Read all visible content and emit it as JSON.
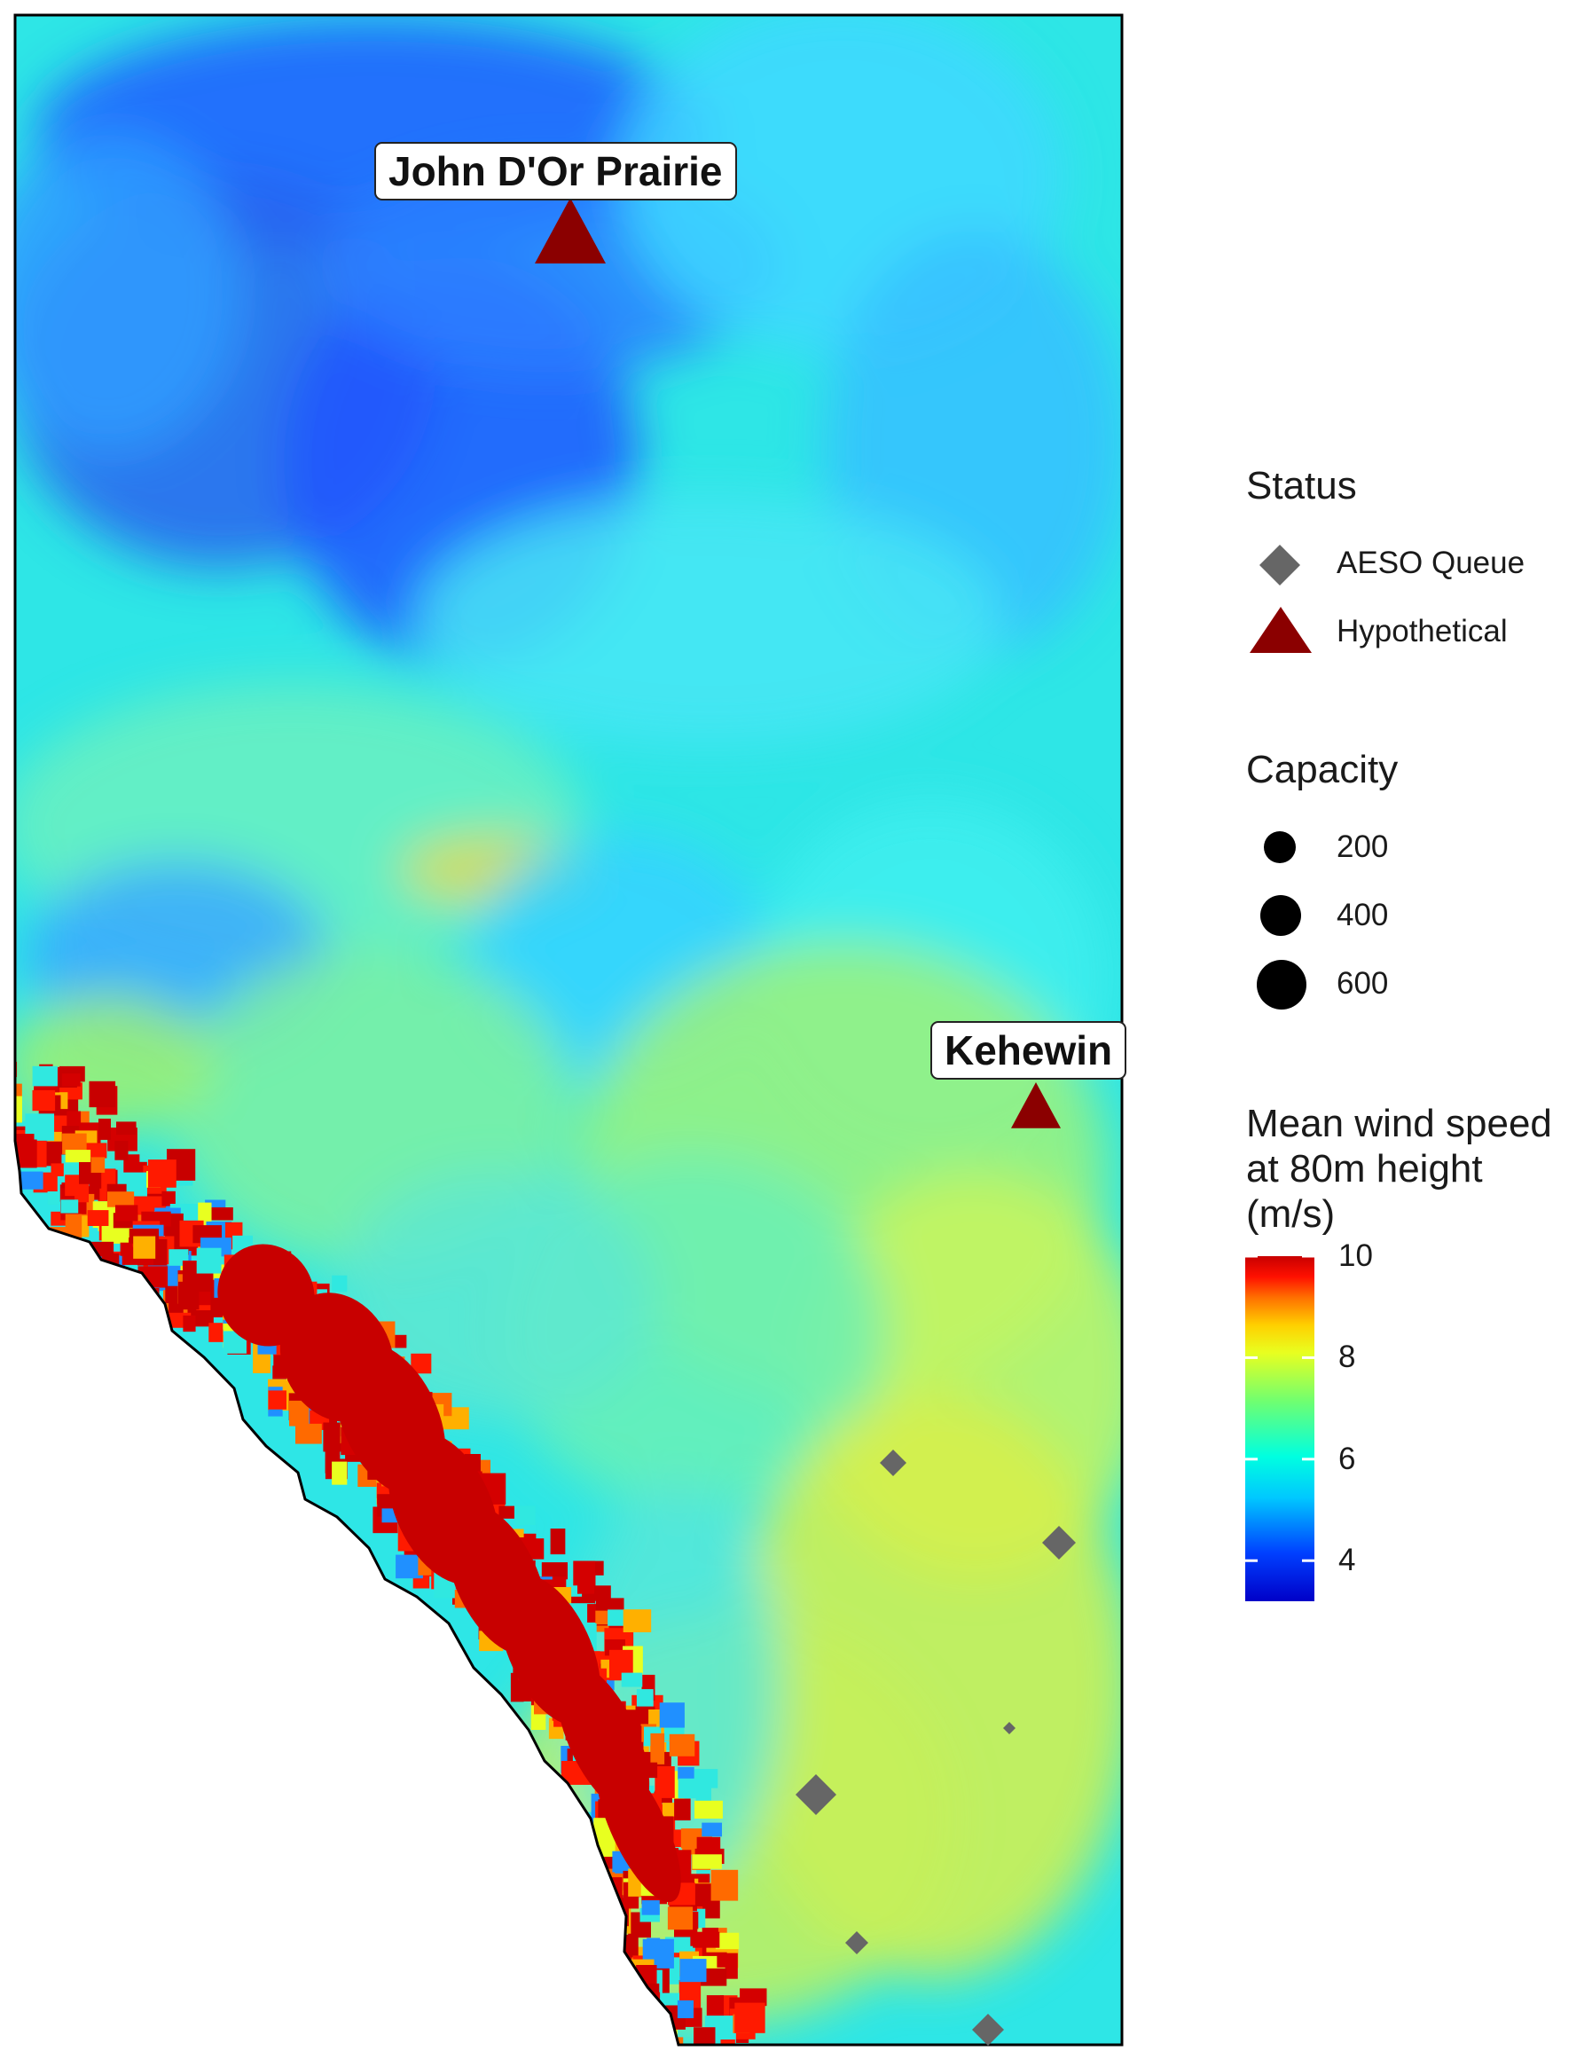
{
  "map": {
    "region": "Alberta",
    "colormap": "jet"
  },
  "sites": [
    {
      "name": "John D'Or Prairie",
      "status": "Hypothetical"
    },
    {
      "name": "Kehewin",
      "status": "Hypothetical"
    }
  ],
  "queue_projects": [
    {
      "status": "AESO Queue"
    },
    {
      "status": "AESO Queue"
    },
    {
      "status": "AESO Queue"
    },
    {
      "status": "AESO Queue"
    },
    {
      "status": "AESO Queue"
    },
    {
      "status": "AESO Queue"
    }
  ],
  "legend": {
    "status": {
      "title": "Status",
      "items": [
        {
          "label": "AESO Queue",
          "shape": "diamond",
          "color": "#666666"
        },
        {
          "label": "Hypothetical",
          "shape": "triangle",
          "color": "#8b0000"
        }
      ]
    },
    "capacity": {
      "title": "Capacity",
      "items": [
        {
          "label": "200"
        },
        {
          "label": "400"
        },
        {
          "label": "600"
        }
      ]
    },
    "wind": {
      "title_line1": "Mean wind speed",
      "title_line2": "at 80m height",
      "title_line3": "(m/s)",
      "ticks": [
        "10",
        "8",
        "6",
        "4"
      ],
      "min_value": 3.2,
      "max_value": 10
    }
  }
}
